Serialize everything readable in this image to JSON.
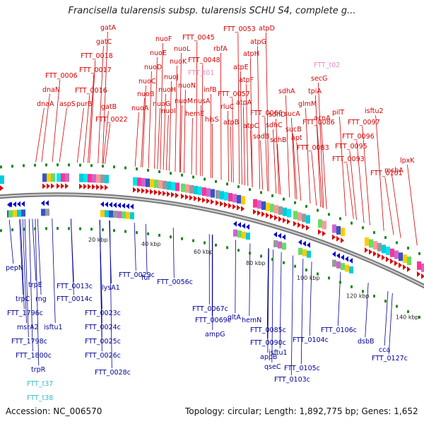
{
  "header": {
    "title": "Francisella tularensis subsp. tularensis SCHU S4, complete g..."
  },
  "footer": {
    "accession": "Accession: NC_006570",
    "summary": "Topology: circular; Length: 1,892,775 bp; Genes: 1,652"
  },
  "colors": {
    "forward_gene": "#d40000",
    "reverse_gene": "#00009a",
    "forward_rna": "#ee88cc",
    "reverse_rna": "#33bbcc",
    "backbone": "#777777",
    "tick": "#228822"
  },
  "ticks": [
    "20 kbp",
    "40 kbp",
    "60 kbp",
    "80 kbp",
    "100 kbp",
    "120 kbp",
    "140 kbp"
  ],
  "forward_labels": [
    {
      "text": "dnaA"
    },
    {
      "text": "dnaN"
    },
    {
      "text": "FTT_0006"
    },
    {
      "text": "aspS"
    },
    {
      "text": "purB"
    },
    {
      "text": "FTT_0016"
    },
    {
      "text": "FTT_0017"
    },
    {
      "text": "FTT_0018"
    },
    {
      "text": "gatC"
    },
    {
      "text": "gatA"
    },
    {
      "text": "gatB"
    },
    {
      "text": "FTT_0022"
    },
    {
      "text": "nuoA"
    },
    {
      "text": "nuoB"
    },
    {
      "text": "nuoC"
    },
    {
      "text": "nuoD"
    },
    {
      "text": "nuoE"
    },
    {
      "text": "nuoF"
    },
    {
      "text": "nuoG"
    },
    {
      "text": "nuoH"
    },
    {
      "text": "nuoI"
    },
    {
      "text": "nuoJ"
    },
    {
      "text": "nuoK"
    },
    {
      "text": "nuoL"
    },
    {
      "text": "nuoM"
    },
    {
      "text": "nuoN"
    },
    {
      "text": "FTT_0045"
    },
    {
      "text": "FTT_0048"
    },
    {
      "text": "hemE"
    },
    {
      "text": "nusA"
    },
    {
      "text": "infB"
    },
    {
      "text": "rbfA"
    },
    {
      "text": "hisS"
    },
    {
      "text": "FTT_0053"
    },
    {
      "text": "rluC"
    },
    {
      "text": "FTT_0057"
    },
    {
      "text": "atpB"
    },
    {
      "text": "atpE"
    },
    {
      "text": "atpF"
    },
    {
      "text": "atpH"
    },
    {
      "text": "atpA"
    },
    {
      "text": "atpG"
    },
    {
      "text": "atpD"
    },
    {
      "text": "atpC"
    },
    {
      "text": "FTT_0066"
    },
    {
      "text": "sodB"
    },
    {
      "text": "sdhC"
    },
    {
      "text": "sdhD"
    },
    {
      "text": "sdhA"
    },
    {
      "text": "sdhB"
    },
    {
      "text": "sucA"
    },
    {
      "text": "sucB"
    },
    {
      "text": "apt"
    },
    {
      "text": "FTT_0083"
    },
    {
      "text": "FTT_0086"
    },
    {
      "text": "glmM"
    },
    {
      "text": "tpiA"
    },
    {
      "text": "secG"
    },
    {
      "text": "acnA"
    },
    {
      "text": "FTT_0093"
    },
    {
      "text": "pilT"
    },
    {
      "text": "FTT_0095"
    },
    {
      "text": "FTT_0096"
    },
    {
      "text": "FTT_0097"
    },
    {
      "text": "isftu2"
    },
    {
      "text": "FTT_0101"
    },
    {
      "text": "msbA"
    },
    {
      "text": "lpxK"
    }
  ],
  "forward_rna_labels": [
    {
      "text": "FTT_t01"
    },
    {
      "text": "FTT_t02"
    }
  ],
  "reverse_labels": [
    {
      "text": "pepN"
    },
    {
      "text": "trpC"
    },
    {
      "text": "FTT_1796c"
    },
    {
      "text": "trpE"
    },
    {
      "text": "rng"
    },
    {
      "text": "msrA2"
    },
    {
      "text": "isftu1"
    },
    {
      "text": "FTT_1798c"
    },
    {
      "text": "FTT_1800c"
    },
    {
      "text": "trpR"
    },
    {
      "text": "FTT_0013c"
    },
    {
      "text": "FTT_0014c"
    },
    {
      "text": "FTT_0023c"
    },
    {
      "text": "FTT_0024c"
    },
    {
      "text": "FTT_0025c"
    },
    {
      "text": "FTT_0026c"
    },
    {
      "text": "FTT_0028c"
    },
    {
      "text": "lysA1"
    },
    {
      "text": "FTT_0029c"
    },
    {
      "text": "fur"
    },
    {
      "text": "FTT_0056c"
    },
    {
      "text": "FTT_0067c"
    },
    {
      "text": "FTT_0069c"
    },
    {
      "text": "ampG"
    },
    {
      "text": "gltA"
    },
    {
      "text": "hemN"
    },
    {
      "text": "FTT_0085c"
    },
    {
      "text": "FTT_0090c"
    },
    {
      "text": "appB"
    },
    {
      "text": "isftu1"
    },
    {
      "text": "qseC"
    },
    {
      "text": "FTT_0104c"
    },
    {
      "text": "FTT_0105c"
    },
    {
      "text": "FTT_0103c"
    },
    {
      "text": "FTT_0106c"
    },
    {
      "text": "dsbB"
    },
    {
      "text": "cca"
    },
    {
      "text": "FTT_0127c"
    }
  ],
  "reverse_rna_labels": [
    {
      "text": "FTT_t37"
    },
    {
      "text": "FTT_t38"
    }
  ]
}
